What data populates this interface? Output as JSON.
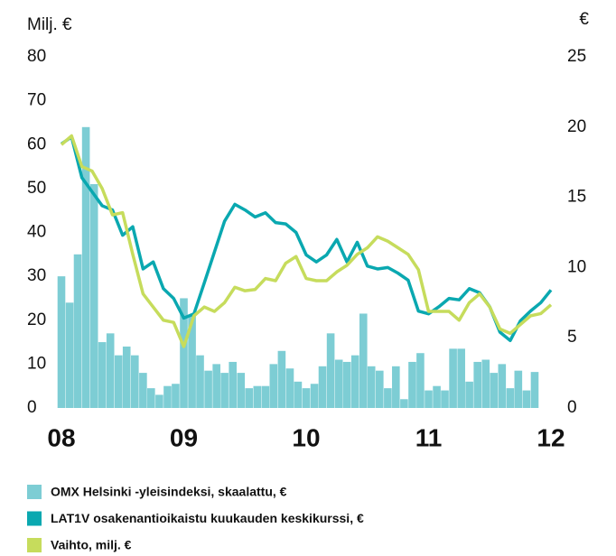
{
  "chart_data": {
    "type": "bar-line",
    "ylabel": "Milj. €",
    "y2label": "€",
    "ylim": [
      0,
      80
    ],
    "yticks": [
      0,
      10,
      20,
      30,
      40,
      50,
      60,
      70,
      80
    ],
    "y2lim": [
      0,
      25
    ],
    "y2ticks": [
      0,
      5,
      10,
      15,
      20,
      25
    ],
    "xlim": [
      2008,
      2012
    ],
    "xticks": [
      {
        "value": 2008,
        "label": "08"
      },
      {
        "value": 2009,
        "label": "09"
      },
      {
        "value": 2010,
        "label": "10"
      },
      {
        "value": 2011,
        "label": "11"
      },
      {
        "value": 2012,
        "label": "12"
      }
    ],
    "series": [
      {
        "name": "OMX Helsinki -yleisindeksi, skaalattu, €",
        "kind": "bar",
        "color": "#7dcdd4",
        "x": [
          2008,
          2008.067,
          2008.133,
          2008.2,
          2008.267,
          2008.333,
          2008.4,
          2008.467,
          2008.533,
          2008.6,
          2008.667,
          2008.733,
          2008.8,
          2008.867,
          2008.933,
          2009,
          2009.067,
          2009.133,
          2009.2,
          2009.267,
          2009.333,
          2009.4,
          2009.467,
          2009.533,
          2009.6,
          2009.667,
          2009.733,
          2009.8,
          2009.867,
          2009.933,
          2010,
          2010.067,
          2010.133,
          2010.2,
          2010.267,
          2010.333,
          2010.4,
          2010.467,
          2010.533,
          2010.6,
          2010.667,
          2010.733,
          2010.8,
          2010.867,
          2010.933,
          2011,
          2011.067,
          2011.133,
          2011.2,
          2011.267,
          2011.333,
          2011.4,
          2011.467,
          2011.533,
          2011.6,
          2011.667,
          2011.733,
          2011.8,
          2011.867
        ],
        "values": [
          30,
          24,
          35,
          64,
          51,
          15,
          17,
          12,
          14,
          12,
          8,
          4.5,
          3,
          5,
          5.5,
          25,
          21,
          12,
          8.5,
          10,
          8,
          10.5,
          8,
          4.5,
          5,
          5,
          10,
          13,
          9,
          6,
          4.5,
          5.5,
          9.5,
          17,
          11,
          10.5,
          12,
          21.5,
          9.5,
          8.5,
          4.5,
          9.5,
          2,
          10.5,
          12.5,
          4,
          5,
          4,
          13.5,
          13.5,
          6,
          10.5,
          11,
          8,
          10,
          4.5,
          8.5,
          4,
          8.2
        ]
      },
      {
        "name": "LAT1V osakenantioikaistu kuukauden keskikurssi, €",
        "kind": "line",
        "axis": "y2",
        "color": "#0aa8b0",
        "x": [
          2008,
          2008.083,
          2008.167,
          2008.25,
          2008.333,
          2008.417,
          2008.5,
          2008.583,
          2008.667,
          2008.75,
          2008.833,
          2008.917,
          2009,
          2009.083,
          2009.167,
          2009.25,
          2009.333,
          2009.417,
          2009.5,
          2009.583,
          2009.667,
          2009.75,
          2009.833,
          2009.917,
          2010,
          2010.083,
          2010.167,
          2010.25,
          2010.333,
          2010.417,
          2010.5,
          2010.583,
          2010.667,
          2010.75,
          2010.833,
          2010.917,
          2011,
          2011.083,
          2011.167,
          2011.25,
          2011.333,
          2011.417,
          2011.5,
          2011.583,
          2011.667,
          2011.75,
          2011.833,
          2011.917,
          2012
        ],
        "values": [
          18.8,
          19.3,
          16.4,
          15.4,
          14.4,
          14.1,
          12.3,
          12.9,
          9.9,
          10.4,
          8.5,
          7.8,
          6.4,
          6.7,
          8.9,
          11.1,
          13.3,
          14.5,
          14.1,
          13.6,
          13.9,
          13.2,
          13.1,
          12.5,
          10.9,
          10.4,
          10.9,
          12,
          10.4,
          11.8,
          10.1,
          9.9,
          10,
          9.6,
          9.1,
          6.9,
          6.7,
          7.2,
          7.8,
          7.7,
          8.5,
          8.2,
          7.2,
          5.4,
          4.8,
          6.2,
          6.9,
          7.5,
          8.4
        ]
      },
      {
        "name": "Vaihto, milj. €",
        "kind": "line",
        "color": "#c6dc5c",
        "x": [
          2008,
          2008.083,
          2008.167,
          2008.25,
          2008.333,
          2008.417,
          2008.5,
          2008.583,
          2008.667,
          2008.75,
          2008.833,
          2008.917,
          2009,
          2009.083,
          2009.167,
          2009.25,
          2009.333,
          2009.417,
          2009.5,
          2009.583,
          2009.667,
          2009.75,
          2009.833,
          2009.917,
          2010,
          2010.083,
          2010.167,
          2010.25,
          2010.333,
          2010.417,
          2010.5,
          2010.583,
          2010.667,
          2010.75,
          2010.833,
          2010.917,
          2011,
          2011.083,
          2011.167,
          2011.25,
          2011.333,
          2011.417,
          2011.5,
          2011.583,
          2011.667,
          2011.75,
          2011.833,
          2011.917,
          2012
        ],
        "values": [
          60,
          62,
          55,
          54,
          50,
          44,
          44.5,
          35,
          26,
          23,
          20,
          19.5,
          14,
          21,
          23,
          22,
          24,
          27.5,
          26.7,
          27,
          29.5,
          29,
          33,
          34.5,
          29.5,
          29,
          29,
          31,
          32.5,
          35,
          36.5,
          39,
          38,
          36.5,
          35,
          31.5,
          22,
          22,
          22,
          20,
          24,
          26,
          23,
          18,
          17,
          19,
          21,
          21.5,
          23.5
        ]
      }
    ]
  }
}
